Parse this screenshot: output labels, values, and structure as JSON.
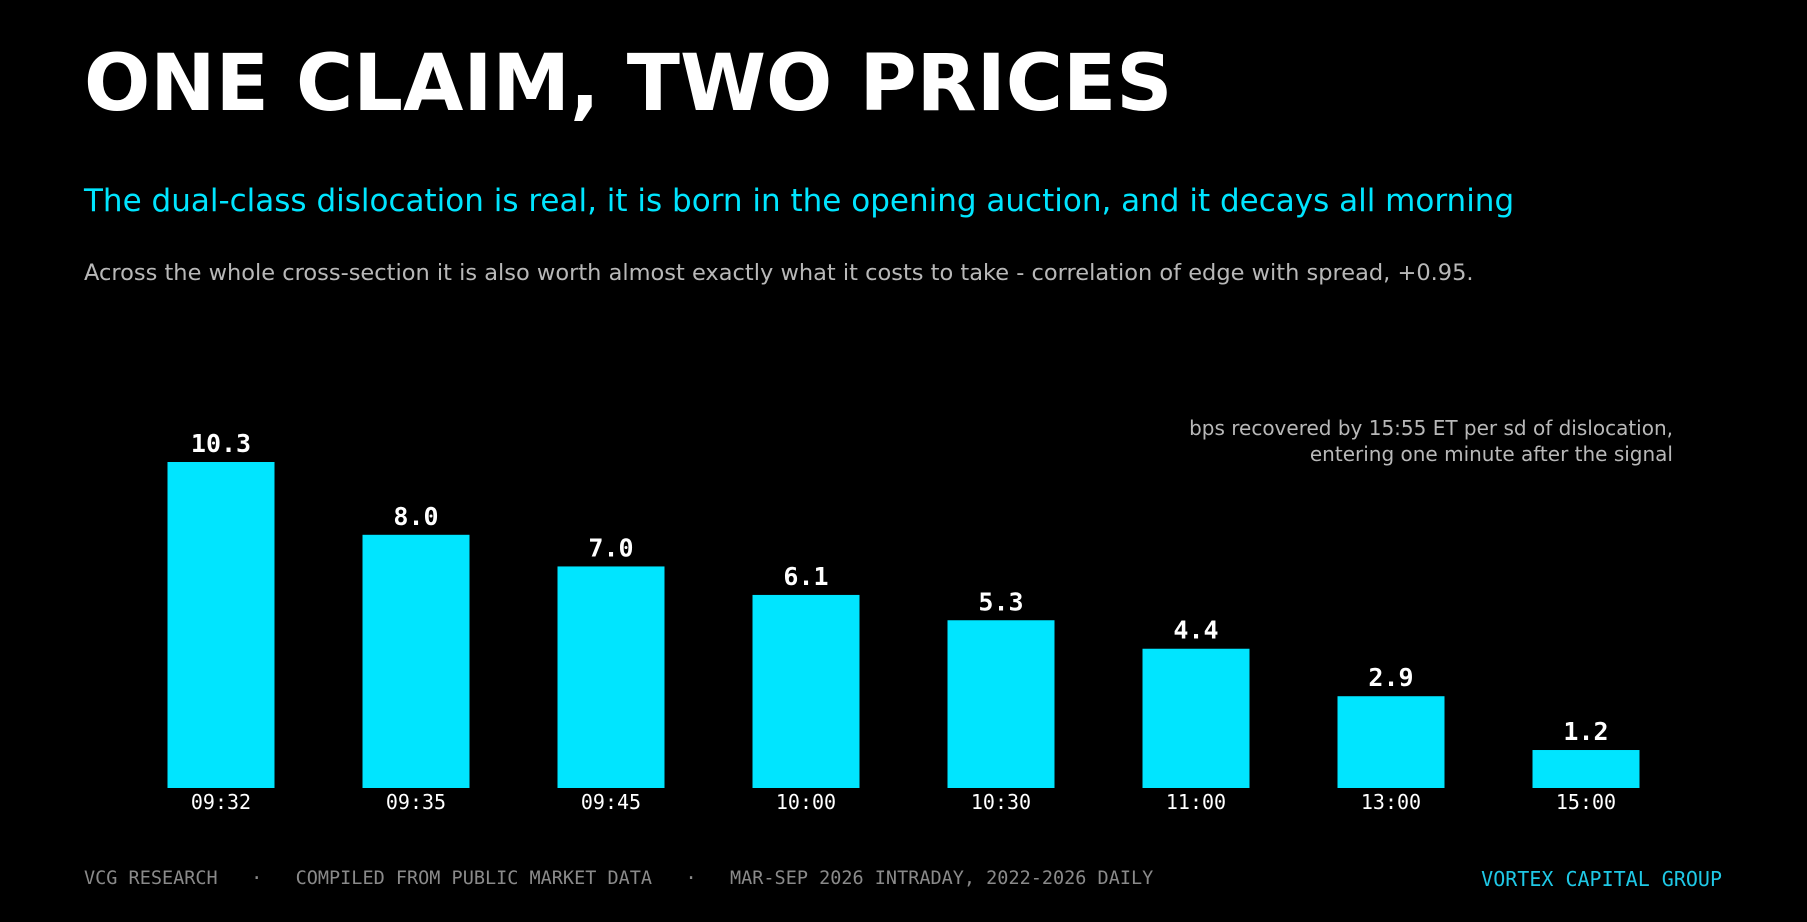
{
  "header": {
    "title": "ONE CLAIM, TWO PRICES",
    "subtitle": "The dual-class dislocation is real, it is born in the opening auction, and it decays all morning",
    "note": "Across the whole cross-section it is also worth almost exactly what it costs to take - correlation of edge with spread, +0.95."
  },
  "chart_data": {
    "type": "bar",
    "categories": [
      "09:32",
      "09:35",
      "09:45",
      "10:00",
      "10:30",
      "11:00",
      "13:00",
      "15:00"
    ],
    "values": [
      10.3,
      8.0,
      7.0,
      6.1,
      5.3,
      4.4,
      2.9,
      1.2
    ],
    "data_labels": [
      "10.3",
      "8.0",
      "7.0",
      "6.1",
      "5.3",
      "4.4",
      "2.9",
      "1.2"
    ],
    "annotation": [
      "bps recovered by 15:55 ET per sd of dislocation,",
      "entering one minute after the signal"
    ],
    "bar_color": "#00e5ff",
    "ylim": [
      0,
      10.3
    ],
    "grid": false
  },
  "footer": {
    "left": "VCG RESEARCH   ·   COMPILED FROM PUBLIC MARKET DATA   ·   MAR-SEP 2026 INTRADAY, 2022-2026 DAILY",
    "right": "VORTEX CAPITAL GROUP"
  },
  "colors": {
    "background": "#000000",
    "accent": "#00e5ff",
    "title": "#ffffff",
    "muted": "#b8b8b8"
  }
}
